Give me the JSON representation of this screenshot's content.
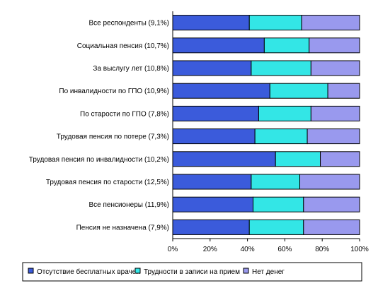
{
  "chart_data": {
    "type": "bar",
    "orientation": "horizontal",
    "stacked": "percent",
    "categories": [
      "Все респонденты (9,1%)",
      "Социальная пенсия (10,7%)",
      "За выслугу лет (10,8%)",
      "По инвалидности по ГПО (10,9%)",
      "По старости по ГПО (7,8%)",
      "Трудовая пенсия по потере (7,3%)",
      "Трудовая пенсия по инвалидности (10,2%)",
      "Трудовая пенсия по старости (12,5%)",
      "Все пенсионеры (11,9%)",
      "Пенсия не назначена (7,9%)"
    ],
    "series": [
      {
        "name": "Отсутствие бесплатных врачей",
        "color": "#3b5bdb",
        "values": [
          41,
          49,
          42,
          52,
          46,
          44,
          55,
          42,
          43,
          41
        ]
      },
      {
        "name": "Трудности в записи на прием",
        "color": "#33e6e6",
        "values": [
          28,
          24,
          32,
          31,
          28,
          28,
          24,
          26,
          27,
          29
        ]
      },
      {
        "name": "Нет денег",
        "color": "#9999ee",
        "values": [
          31,
          27,
          26,
          17,
          26,
          28,
          21,
          32,
          30,
          30
        ]
      }
    ],
    "xlim": [
      0,
      100
    ],
    "xticks": [
      "0%",
      "20%",
      "40%",
      "60%",
      "80%",
      "100%"
    ],
    "grid": false,
    "legend": "bottom"
  }
}
